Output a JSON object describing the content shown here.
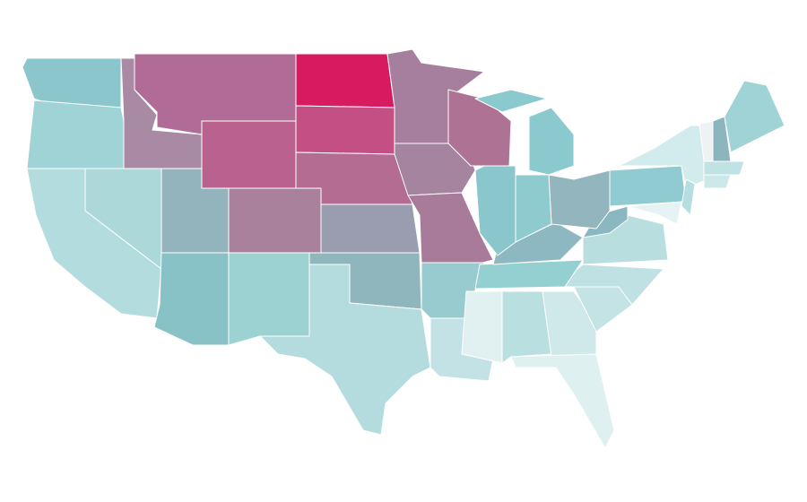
{
  "map": {
    "fills": [
      "#8ac6cb",
      "#a0d3d5",
      "#b3dcdf",
      "#acd8da",
      "#a88aa5",
      "#b06c96",
      "#b9628f",
      "#94b4bd",
      "#88c2c6",
      "#a9819d",
      "#9cd2d2",
      "#d81b60",
      "#c44f84",
      "#b46c93",
      "#9a9daf",
      "#8fb6bd",
      "#b4dcdf",
      "#a77f9e",
      "#a4849f",
      "#a87b9b",
      "#98cbcf",
      "#c2e2e5",
      "#e1f1f2",
      "#b9dfe0",
      "#cfe9ea",
      "#dff0f1",
      "#c4e3e5",
      "#bfe1e3",
      "#94cfd2",
      "#8db8c2",
      "#b8dee0",
      "#8bb8c0",
      "#93b5be",
      "#8ecbcf",
      "#89c7cc",
      "#ad7294",
      "#8ac9cd",
      "#8ac9cd",
      "#8fcbd0",
      "#d2ebec",
      "#b6dee0",
      "#e6f2f3",
      "#eef2f3",
      "#8db5bd",
      "#9fd3d5",
      "#bfe2e4",
      "#cde8e9"
    ]
  }
}
